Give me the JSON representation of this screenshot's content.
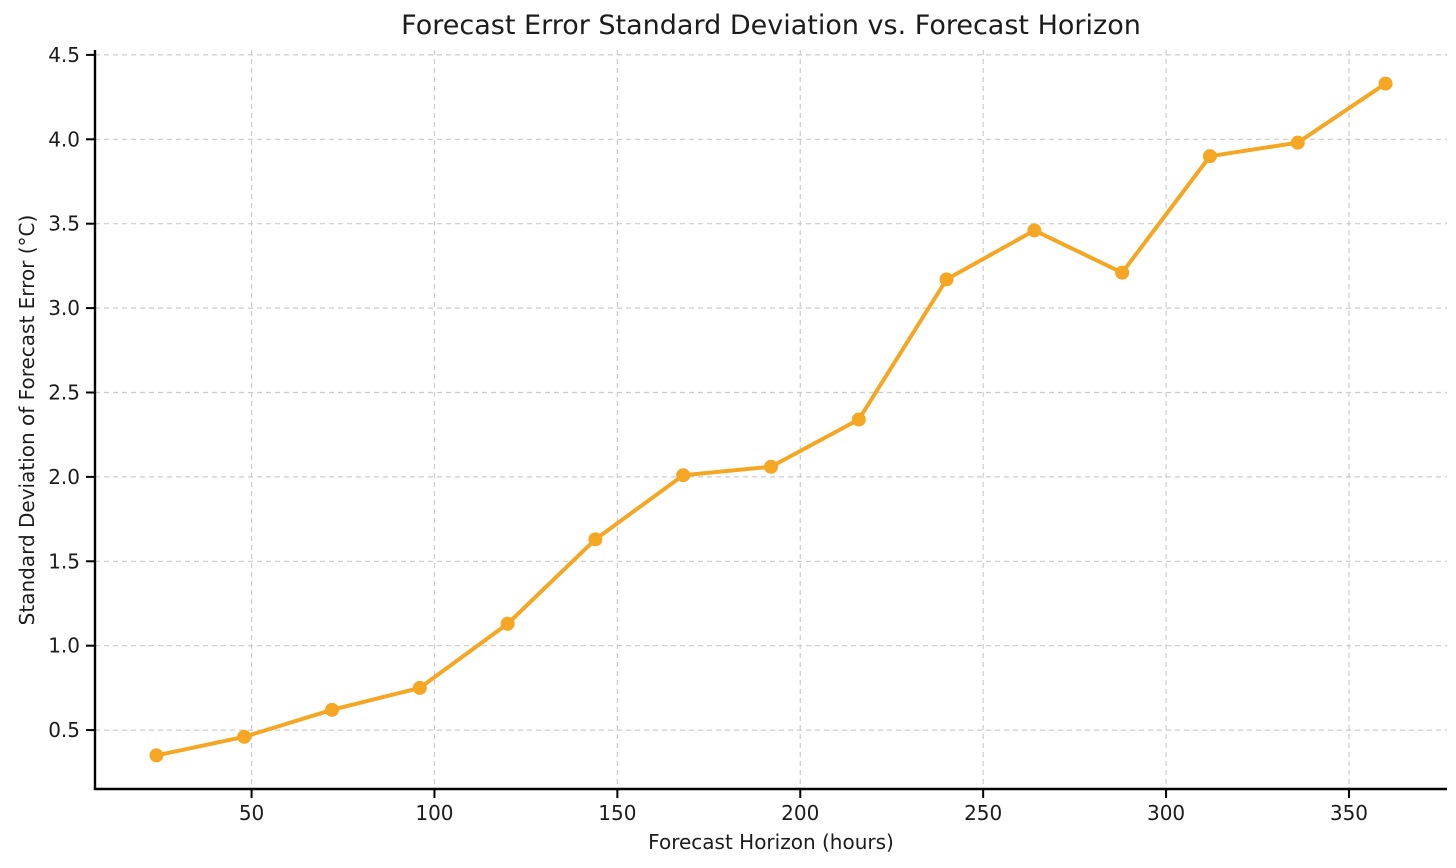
{
  "figure": {
    "background": "#ffffff"
  },
  "chart_data": {
    "type": "line",
    "title": "Forecast Error Standard Deviation vs. Forecast Horizon",
    "xlabel": "Forecast Horizon (hours)",
    "ylabel": "Standard Deviation of Forecast Error (°C)",
    "x": [
      24,
      48,
      72,
      96,
      120,
      144,
      168,
      192,
      216,
      240,
      264,
      288,
      312,
      336,
      360
    ],
    "y": [
      0.35,
      0.46,
      0.62,
      0.75,
      1.13,
      1.63,
      2.01,
      2.06,
      2.34,
      3.17,
      3.46,
      3.21,
      3.9,
      3.98,
      4.33
    ],
    "xticks": [
      50,
      100,
      150,
      200,
      250,
      300,
      350
    ],
    "yticks": [
      0.5,
      1.0,
      1.5,
      2.0,
      2.5,
      3.0,
      3.5,
      4.0,
      4.5
    ],
    "xlim": [
      7.2,
      376.8
    ],
    "ylim": [
      0.151,
      4.529
    ],
    "grid": true,
    "grid_style": "dashed",
    "legend_position": "none",
    "line_color": "#F5A623",
    "marker": "circle",
    "marker_color": "#F5A623",
    "grid_color": "#cccccc",
    "spine_color": "#000000",
    "tick_label_color": "#1c1c1c"
  }
}
